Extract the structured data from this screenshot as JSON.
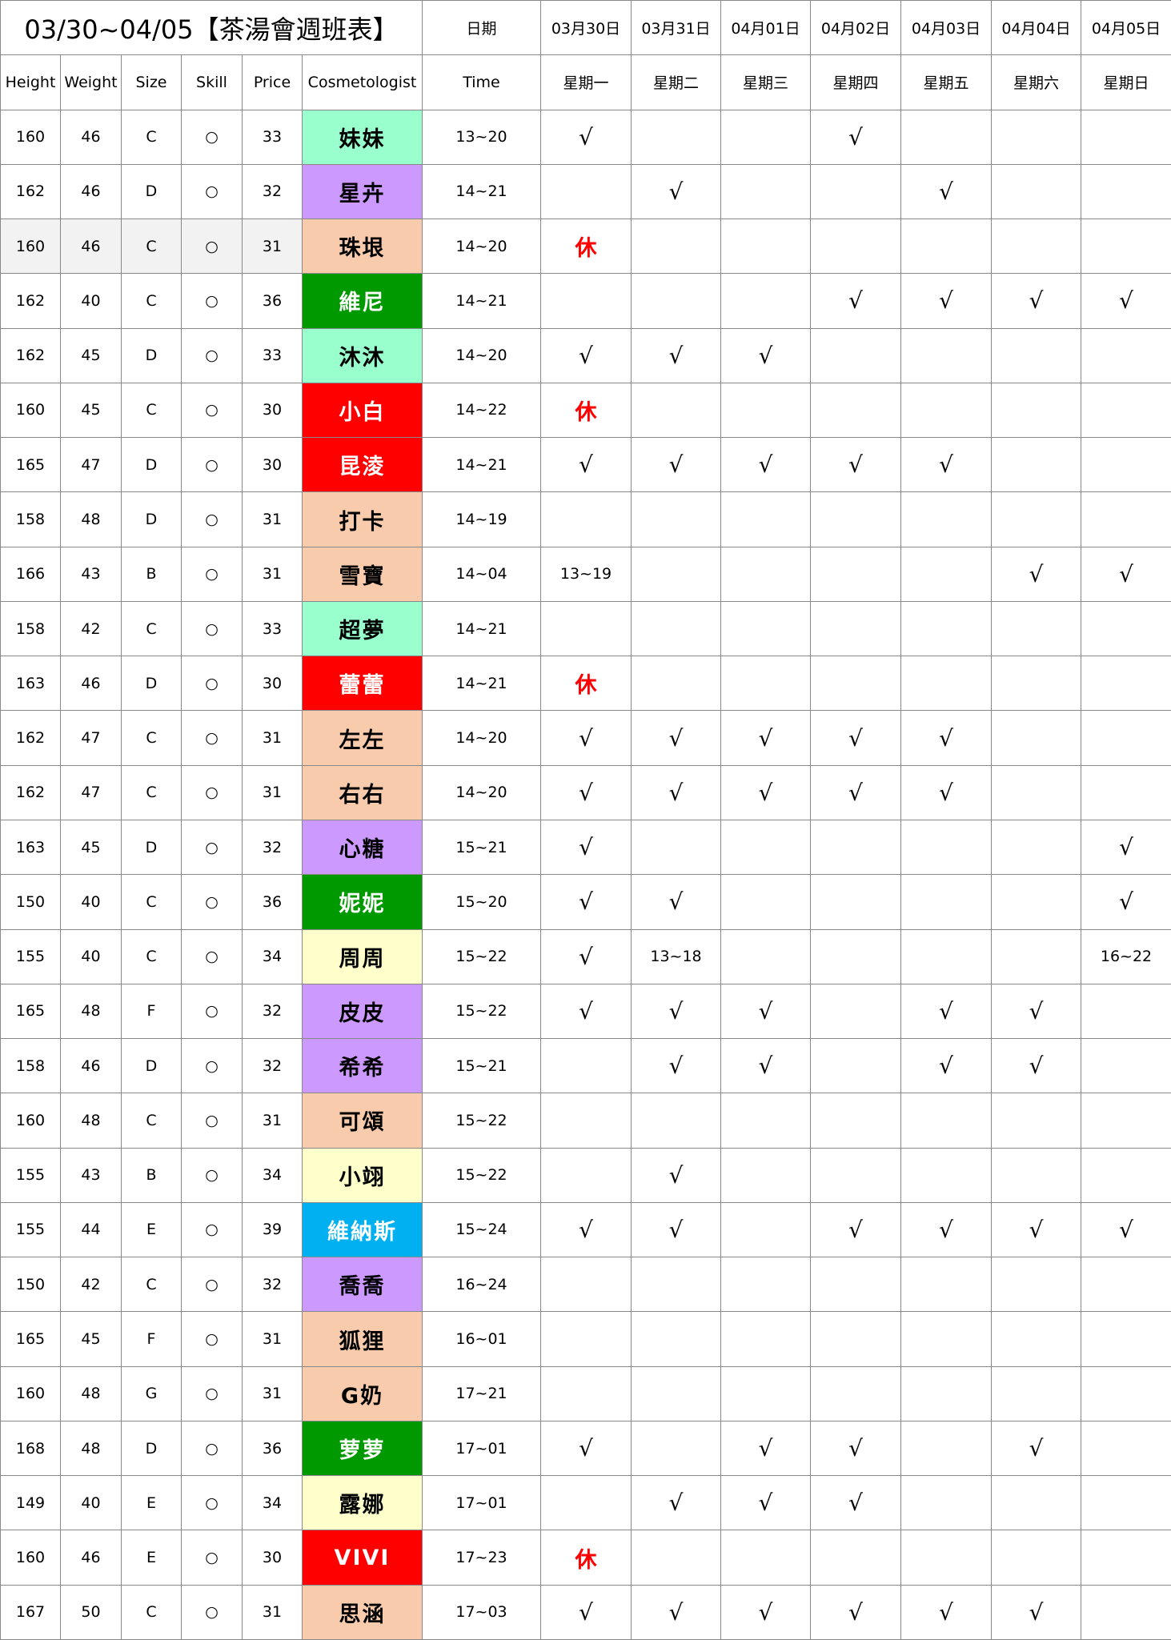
{
  "title": "03/30~04/05【茶湯會週班表】",
  "date_label": "日期",
  "dates": [
    "03月30日",
    "03月31日",
    "04月01日",
    "04月02日",
    "04月03日",
    "04月04日",
    "04月05日"
  ],
  "columns": [
    "Height",
    "Weight",
    "Size",
    "Skill",
    "Price",
    "Cosmetologist",
    "Time"
  ],
  "weekdays": [
    "星期一",
    "星期二",
    "星期三",
    "星期四",
    "星期五",
    "星期六",
    "星期日"
  ],
  "colors": {
    "mint": {
      "bg": "#99FFCC",
      "fg": "#000000"
    },
    "purple": {
      "bg": "#CC99FF",
      "fg": "#000000"
    },
    "peach": {
      "bg": "#F8CBAD",
      "fg": "#000000"
    },
    "green": {
      "bg": "#009900",
      "fg": "#FFFFFF"
    },
    "red": {
      "bg": "#FF0000",
      "fg": "#FFFFFF"
    },
    "yellow": {
      "bg": "#FFFFCC",
      "fg": "#000000"
    },
    "blue": {
      "bg": "#00B0F0",
      "fg": "#FFFFFF"
    },
    "rest_text": "#FF0000"
  },
  "rows": [
    {
      "height": "160",
      "weight": "46",
      "size": "C",
      "skill": "○",
      "price": "33",
      "name": "妹妹",
      "color": "mint",
      "time": "13~20",
      "days": [
        "√",
        "",
        "",
        "√",
        "",
        "",
        ""
      ]
    },
    {
      "height": "162",
      "weight": "46",
      "size": "D",
      "skill": "○",
      "price": "32",
      "name": "星卉",
      "color": "purple",
      "time": "14~21",
      "days": [
        "",
        "√",
        "",
        "",
        "√",
        "",
        ""
      ]
    },
    {
      "height": "160",
      "weight": "46",
      "size": "C",
      "skill": "○",
      "price": "31",
      "name": "珠垠",
      "color": "peach",
      "time": "14~20",
      "days": [
        "休",
        "",
        "",
        "",
        "",
        "",
        ""
      ],
      "highlight": true
    },
    {
      "height": "162",
      "weight": "40",
      "size": "C",
      "skill": "○",
      "price": "36",
      "name": "維尼",
      "color": "green",
      "time": "14~21",
      "days": [
        "",
        "",
        "",
        "√",
        "√",
        "√",
        "√"
      ]
    },
    {
      "height": "162",
      "weight": "45",
      "size": "D",
      "skill": "○",
      "price": "33",
      "name": "沐沐",
      "color": "mint",
      "time": "14~20",
      "days": [
        "√",
        "√",
        "√",
        "",
        "",
        "",
        ""
      ]
    },
    {
      "height": "160",
      "weight": "45",
      "size": "C",
      "skill": "○",
      "price": "30",
      "name": "小白",
      "color": "red",
      "time": "14~22",
      "days": [
        "休",
        "",
        "",
        "",
        "",
        "",
        ""
      ]
    },
    {
      "height": "165",
      "weight": "47",
      "size": "D",
      "skill": "○",
      "price": "30",
      "name": "昆淩",
      "color": "red",
      "time": "14~21",
      "days": [
        "√",
        "√",
        "√",
        "√",
        "√",
        "",
        ""
      ]
    },
    {
      "height": "158",
      "weight": "48",
      "size": "D",
      "skill": "○",
      "price": "31",
      "name": "打卡",
      "color": "peach",
      "time": "14~19",
      "days": [
        "",
        "",
        "",
        "",
        "",
        "",
        ""
      ]
    },
    {
      "height": "166",
      "weight": "43",
      "size": "B",
      "skill": "○",
      "price": "31",
      "name": "雪寶",
      "color": "peach",
      "time": "14~04",
      "days": [
        "13~19",
        "",
        "",
        "",
        "",
        "√",
        "√"
      ]
    },
    {
      "height": "158",
      "weight": "42",
      "size": "C",
      "skill": "○",
      "price": "33",
      "name": "超夢",
      "color": "mint",
      "time": "14~21",
      "days": [
        "",
        "",
        "",
        "",
        "",
        "",
        ""
      ]
    },
    {
      "height": "163",
      "weight": "46",
      "size": "D",
      "skill": "○",
      "price": "30",
      "name": "蕾蕾",
      "color": "red",
      "time": "14~21",
      "days": [
        "休",
        "",
        "",
        "",
        "",
        "",
        ""
      ]
    },
    {
      "height": "162",
      "weight": "47",
      "size": "C",
      "skill": "○",
      "price": "31",
      "name": "左左",
      "color": "peach",
      "time": "14~20",
      "days": [
        "√",
        "√",
        "√",
        "√",
        "√",
        "",
        ""
      ]
    },
    {
      "height": "162",
      "weight": "47",
      "size": "C",
      "skill": "○",
      "price": "31",
      "name": "右右",
      "color": "peach",
      "time": "14~20",
      "days": [
        "√",
        "√",
        "√",
        "√",
        "√",
        "",
        ""
      ]
    },
    {
      "height": "163",
      "weight": "45",
      "size": "D",
      "skill": "○",
      "price": "32",
      "name": "心糖",
      "color": "purple",
      "time": "15~21",
      "days": [
        "√",
        "",
        "",
        "",
        "",
        "",
        "√"
      ]
    },
    {
      "height": "150",
      "weight": "40",
      "size": "C",
      "skill": "○",
      "price": "36",
      "name": "妮妮",
      "color": "green",
      "time": "15~20",
      "days": [
        "√",
        "√",
        "",
        "",
        "",
        "",
        "√"
      ]
    },
    {
      "height": "155",
      "weight": "40",
      "size": "C",
      "skill": "○",
      "price": "34",
      "name": "周周",
      "color": "yellow",
      "time": "15~22",
      "days": [
        "√",
        "13~18",
        "",
        "",
        "",
        "",
        "16~22"
      ]
    },
    {
      "height": "165",
      "weight": "48",
      "size": "F",
      "skill": "○",
      "price": "32",
      "name": "皮皮",
      "color": "purple",
      "time": "15~22",
      "days": [
        "√",
        "√",
        "√",
        "",
        "√",
        "√",
        ""
      ]
    },
    {
      "height": "158",
      "weight": "46",
      "size": "D",
      "skill": "○",
      "price": "32",
      "name": "希希",
      "color": "purple",
      "time": "15~21",
      "days": [
        "",
        "√",
        "√",
        "",
        "√",
        "√",
        ""
      ]
    },
    {
      "height": "160",
      "weight": "48",
      "size": "C",
      "skill": "○",
      "price": "31",
      "name": "可頌",
      "color": "peach",
      "time": "15~22",
      "days": [
        "",
        "",
        "",
        "",
        "",
        "",
        ""
      ]
    },
    {
      "height": "155",
      "weight": "43",
      "size": "B",
      "skill": "○",
      "price": "34",
      "name": "小翊",
      "color": "yellow",
      "time": "15~22",
      "days": [
        "",
        "√",
        "",
        "",
        "",
        "",
        ""
      ]
    },
    {
      "height": "155",
      "weight": "44",
      "size": "E",
      "skill": "○",
      "price": "39",
      "name": "維納斯",
      "color": "blue",
      "time": "15~24",
      "days": [
        "√",
        "√",
        "",
        "√",
        "√",
        "√",
        "√"
      ]
    },
    {
      "height": "150",
      "weight": "42",
      "size": "C",
      "skill": "○",
      "price": "32",
      "name": "喬喬",
      "color": "purple",
      "time": "16~24",
      "days": [
        "",
        "",
        "",
        "",
        "",
        "",
        ""
      ]
    },
    {
      "height": "165",
      "weight": "45",
      "size": "F",
      "skill": "○",
      "price": "31",
      "name": "狐狸",
      "color": "peach",
      "time": "16~01",
      "days": [
        "",
        "",
        "",
        "",
        "",
        "",
        ""
      ]
    },
    {
      "height": "160",
      "weight": "48",
      "size": "G",
      "skill": "○",
      "price": "31",
      "name": "G奶",
      "color": "peach",
      "time": "17~21",
      "days": [
        "",
        "",
        "",
        "",
        "",
        "",
        ""
      ]
    },
    {
      "height": "168",
      "weight": "48",
      "size": "D",
      "skill": "○",
      "price": "36",
      "name": "萝萝",
      "color": "green",
      "time": "17~01",
      "days": [
        "√",
        "",
        "√",
        "√",
        "",
        "√",
        ""
      ]
    },
    {
      "height": "149",
      "weight": "40",
      "size": "E",
      "skill": "○",
      "price": "34",
      "name": "露娜",
      "color": "yellow",
      "time": "17~01",
      "days": [
        "",
        "√",
        "√",
        "√",
        "",
        "",
        ""
      ]
    },
    {
      "height": "160",
      "weight": "46",
      "size": "E",
      "skill": "○",
      "price": "30",
      "name": "VIVI",
      "color": "red",
      "time": "17~23",
      "days": [
        "休",
        "",
        "",
        "",
        "",
        "",
        ""
      ]
    },
    {
      "height": "167",
      "weight": "50",
      "size": "C",
      "skill": "○",
      "price": "31",
      "name": "思涵",
      "color": "peach",
      "time": "17~03",
      "days": [
        "√",
        "√",
        "√",
        "√",
        "√",
        "√",
        ""
      ]
    }
  ]
}
